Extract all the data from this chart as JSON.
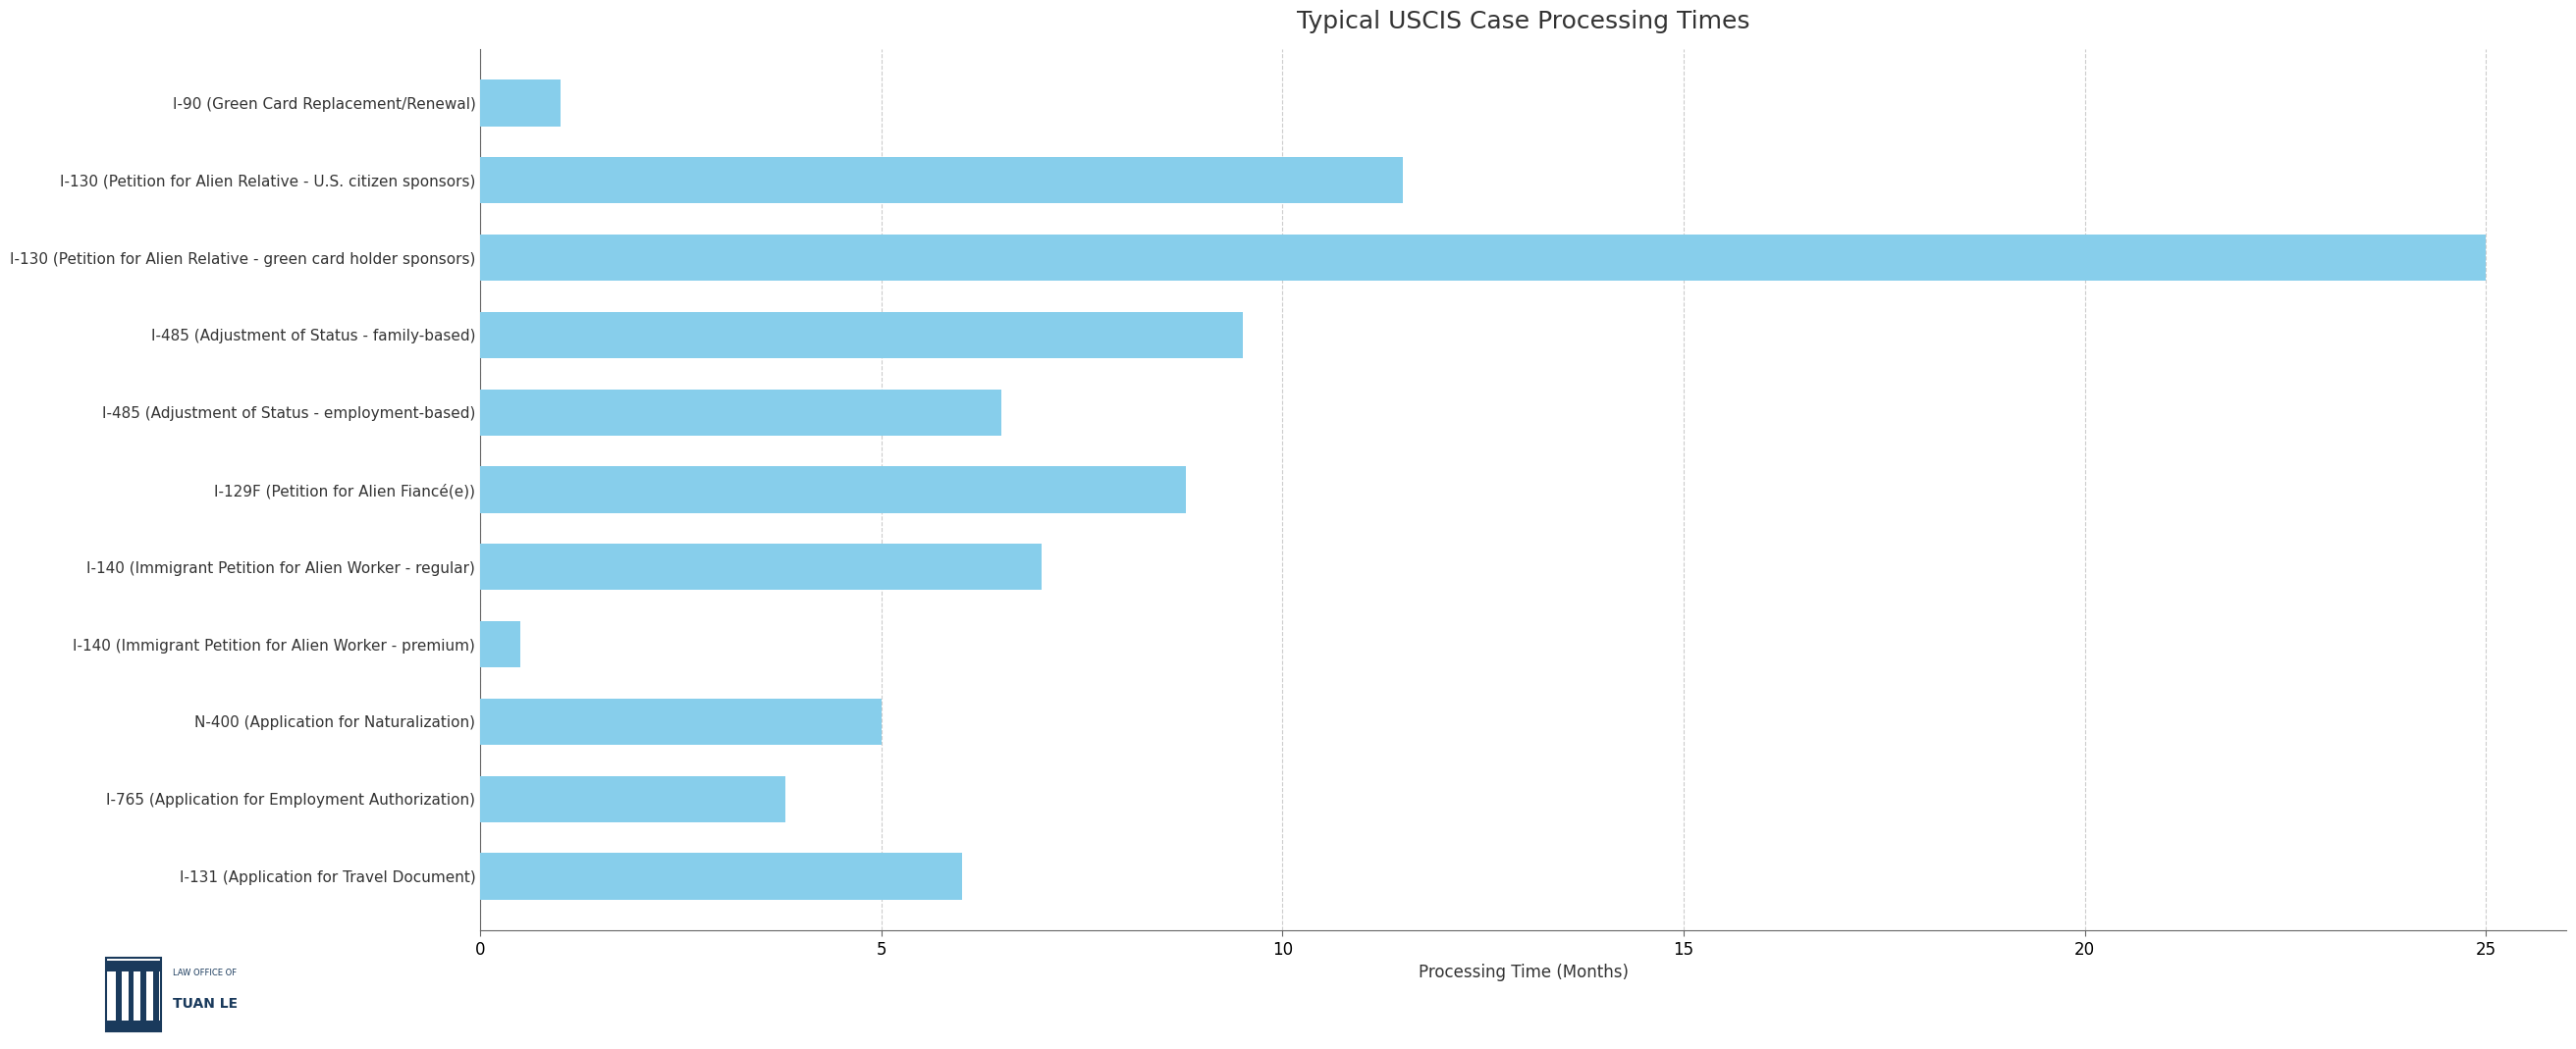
{
  "title": "Typical USCIS Case Processing Times",
  "xlabel": "Processing Time (Months)",
  "categories": [
    "I-90 (Green Card Replacement/Renewal)",
    "I-130 (Petition for Alien Relative - U.S. citizen sponsors)",
    "I-130 (Petition for Alien Relative - green card holder sponsors)",
    "I-485 (Adjustment of Status - family-based)",
    "I-485 (Adjustment of Status - employment-based)",
    "I-129F (Petition for Alien Fiancé(e))",
    "I-140 (Immigrant Petition for Alien Worker - regular)",
    "I-140 (Immigrant Petition for Alien Worker - premium)",
    "N-400 (Application for Naturalization)",
    "I-765 (Application for Employment Authorization)",
    "I-131 (Application for Travel Document)"
  ],
  "values": [
    1.0,
    11.5,
    25.0,
    9.5,
    6.5,
    8.8,
    7.0,
    0.5,
    5.0,
    3.8,
    6.0
  ],
  "bar_color": "#87CEEB",
  "title_fontsize": 18,
  "label_fontsize": 11,
  "tick_fontsize": 12,
  "xlim": [
    0,
    26
  ],
  "xticks": [
    0,
    5,
    10,
    15,
    20,
    25
  ],
  "background_color": "#ffffff",
  "grid_color": "#cccccc",
  "logo_text_top": "LAW OFFICE OF",
  "logo_text_bottom": "TUAN LE",
  "logo_color": "#1a3a5c"
}
